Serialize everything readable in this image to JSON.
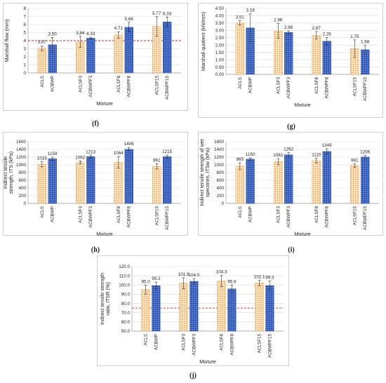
{
  "chart_data": [
    {
      "type": "bar",
      "panel_label": "(f)",
      "categories": [
        "ACLS",
        "ACBWP",
        "ACLSF3",
        "ACBWPF3",
        "ACLSF8",
        "ACBWPF8",
        "ACLSF15",
        "ACBWPF15"
      ],
      "values": [
        3.07,
        3.5,
        3.84,
        4.33,
        4.71,
        5.68,
        5.77,
        6.33
      ],
      "errors": [
        0.3,
        0.9,
        0.7,
        0.1,
        0.4,
        0.6,
        1.2,
        0.6
      ],
      "data_labels": [
        "3.07",
        "3.50",
        "3.84",
        "4.33",
        "4.71",
        "5.68",
        "5.77",
        "6.33"
      ],
      "xlabel": "Mixture",
      "ylabel": "Marshall flow (mm)",
      "ylim": [
        0,
        8
      ],
      "yticks": [
        "0",
        "1",
        "2",
        "3",
        "4",
        "5",
        "6",
        "7",
        "8"
      ],
      "reference_line": 4,
      "grid": true,
      "legend": "none"
    },
    {
      "type": "bar",
      "panel_label": "(g)",
      "categories": [
        "ACLS",
        "ACBWP",
        "ACLSF3",
        "ACBWPF3",
        "ACLSF8",
        "ACBWPF8",
        "ACLSF15",
        "ACBWPF15"
      ],
      "values": [
        3.51,
        3.18,
        2.96,
        2.86,
        2.67,
        2.26,
        1.75,
        1.68
      ],
      "errors": [
        0.15,
        0.95,
        0.5,
        0.1,
        0.25,
        0.25,
        0.6,
        0.3
      ],
      "data_labels": [
        "3.51",
        "3.18",
        "2.96",
        "2.86",
        "2.67",
        "2.26",
        "1.75",
        "1.68"
      ],
      "xlabel": "Mixture",
      "ylabel": "Marshall quotient (kN/mm)",
      "ylim": [
        0,
        4.5
      ],
      "yticks": [
        "0.00",
        "0.50",
        "1.00",
        "1.50",
        "2.00",
        "2.50",
        "3.00",
        "3.50",
        "4.00",
        "4.50"
      ],
      "grid": true,
      "legend": "none"
    },
    {
      "type": "bar",
      "panel_label": "(h)",
      "categories": [
        "ACLS",
        "ACBWP",
        "ACLSF3",
        "ACBWPF3",
        "ACLSF8",
        "ACBWPF8",
        "ACLSF15",
        "ACBWPF15"
      ],
      "values": [
        1016,
        1159,
        1062,
        1213,
        1064,
        1406,
        961,
        1215
      ],
      "errors": [
        70,
        40,
        40,
        30,
        150,
        45,
        70,
        40
      ],
      "data_labels": [
        "1016",
        "1159",
        "1062",
        "1213",
        "1064",
        "1406",
        "961",
        "1215"
      ],
      "xlabel": "Mixture",
      "ylabel": "Indirect tensile strength, ITS (kPa)",
      "ylim": [
        0,
        1600
      ],
      "yticks": [
        "0",
        "200",
        "400",
        "600",
        "800",
        "1000",
        "1200",
        "1400",
        "1600"
      ],
      "grid": true,
      "legend": "none"
    },
    {
      "type": "bar",
      "panel_label": "(i)",
      "categories": [
        "ACLS",
        "ACBWP",
        "ACLSF3",
        "ACBWPF3",
        "ACLSF8",
        "ACBWPF8",
        "ACLSF15",
        "ACBWPF15"
      ],
      "values": [
        965,
        1150,
        1082,
        1262,
        1110,
        1349,
        981,
        1206
      ],
      "errors": [
        90,
        30,
        80,
        60,
        60,
        70,
        50,
        40
      ],
      "data_labels": [
        "965",
        "1150",
        "1082",
        "1262",
        "1110",
        "1349",
        "981",
        "1206"
      ],
      "xlabel": "Mixture",
      "ylabel": "Indirect tensile strength of wet specimen, ITSw (kPa)",
      "ylim": [
        0,
        1600
      ],
      "yticks": [
        "0",
        "200",
        "400",
        "600",
        "800",
        "1000",
        "1200",
        "1400",
        "1600"
      ],
      "grid": true,
      "legend": "none"
    },
    {
      "type": "bar",
      "panel_label": "(j)",
      "categories": [
        "ACLS",
        "ACBWP",
        "ACLSF3",
        "ACBWPF3",
        "ACLSF8",
        "ACBWPF8",
        "ACLSF15",
        "ACBWPF15"
      ],
      "values": [
        95.0,
        99.2,
        101.9,
        104.0,
        104.3,
        95.9,
        102.1,
        99.3
      ],
      "errors": [
        5,
        4,
        6,
        3,
        6,
        4,
        3,
        5
      ],
      "data_labels": [
        "95.0",
        "99.2",
        "101.9",
        "104.0",
        "104.3",
        "95.9",
        "102.1",
        "99.3"
      ],
      "xlabel": "Mixture",
      "ylabel": "Indirect tensile strength ratio, ITSR (%)",
      "ylim": [
        50,
        120
      ],
      "yticks": [
        "50.0",
        "60.0",
        "70.0",
        "80.0",
        "90.0",
        "100.0",
        "110.0",
        "120.0"
      ],
      "reference_line": 75,
      "grid": true,
      "legend": "none"
    }
  ],
  "colors": {
    "ls_fill": "#fbe3bf",
    "ls_dots": "#e2973f",
    "bwp_fill": "#2b55b8",
    "bwp_pattern": "#ffffff",
    "error_bar": "#333333",
    "reference_line": "#e02020",
    "grid": "#d9d9d9",
    "axis_text": "#222222"
  }
}
